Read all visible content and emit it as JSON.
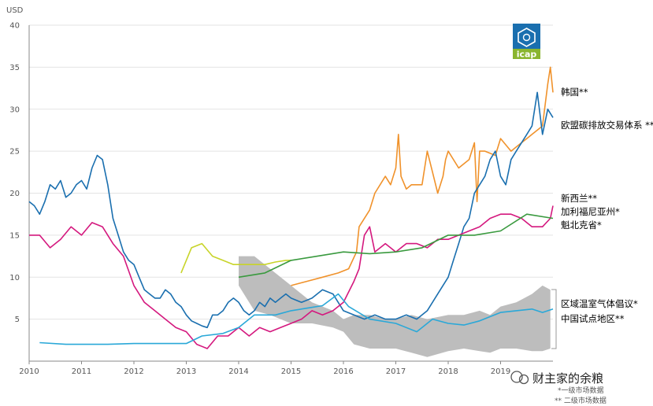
{
  "chart_data": {
    "type": "line",
    "ylabel": "USD",
    "xlim": [
      2010,
      2020
    ],
    "ylim": [
      0,
      40
    ],
    "yticks": [
      5,
      10,
      15,
      20,
      25,
      30,
      35,
      40
    ],
    "xticks": [
      2010,
      2011,
      2012,
      2013,
      2014,
      2015,
      2016,
      2017,
      2018,
      2019
    ],
    "grid": "horizontal",
    "legend_placement": "right",
    "series": [
      {
        "name": "韩国**",
        "color": "#f0922b",
        "x": [
          2015.0,
          2015.3,
          2015.6,
          2015.9,
          2016.1,
          2016.25,
          2016.3,
          2016.5,
          2016.6,
          2016.8,
          2016.9,
          2017.0,
          2017.05,
          2017.1,
          2017.2,
          2017.3,
          2017.5,
          2017.6,
          2017.7,
          2017.8,
          2017.9,
          2017.95,
          2018.0,
          2018.2,
          2018.4,
          2018.5,
          2018.55,
          2018.6,
          2018.7,
          2018.9,
          2019.0,
          2019.2,
          2019.4,
          2019.5,
          2019.6,
          2019.8,
          2019.9,
          2019.95,
          2020.0
        ],
        "y": [
          9,
          9.5,
          10,
          10.5,
          11,
          13,
          16,
          18,
          20,
          22,
          21,
          23,
          27,
          22,
          20.5,
          21,
          21,
          25,
          22.5,
          20,
          22,
          24,
          25,
          23,
          24,
          26,
          19,
          25,
          25,
          24.5,
          26.5,
          25,
          26,
          26.5,
          27,
          28,
          33,
          35,
          32
        ]
      },
      {
        "name": "欧盟碳排放交易体系 **",
        "color": "#1a6faf",
        "x": [
          2010.0,
          2010.1,
          2010.2,
          2010.3,
          2010.4,
          2010.5,
          2010.6,
          2010.7,
          2010.8,
          2010.9,
          2011.0,
          2011.1,
          2011.2,
          2011.3,
          2011.4,
          2011.5,
          2011.6,
          2011.7,
          2011.8,
          2011.9,
          2012.0,
          2012.1,
          2012.2,
          2012.3,
          2012.4,
          2012.5,
          2012.6,
          2012.7,
          2012.8,
          2012.9,
          2013.0,
          2013.1,
          2013.2,
          2013.3,
          2013.4,
          2013.5,
          2013.6,
          2013.7,
          2013.8,
          2013.9,
          2014.0,
          2014.1,
          2014.2,
          2014.3,
          2014.4,
          2014.5,
          2014.6,
          2014.7,
          2014.8,
          2014.9,
          2015.0,
          2015.2,
          2015.4,
          2015.6,
          2015.8,
          2016.0,
          2016.2,
          2016.4,
          2016.6,
          2016.8,
          2017.0,
          2017.2,
          2017.4,
          2017.6,
          2017.8,
          2018.0,
          2018.1,
          2018.2,
          2018.3,
          2018.4,
          2018.5,
          2018.6,
          2018.7,
          2018.8,
          2018.9,
          2019.0,
          2019.1,
          2019.2,
          2019.3,
          2019.4,
          2019.5,
          2019.6,
          2019.7,
          2019.8,
          2019.9,
          2020.0
        ],
        "y": [
          19,
          18.5,
          17.5,
          19,
          21,
          20.5,
          21.5,
          19.5,
          20,
          21,
          21.5,
          20.5,
          23,
          24.5,
          24,
          21,
          17,
          15,
          13,
          12,
          11.5,
          10,
          8.5,
          8,
          7.5,
          7.5,
          8.5,
          8,
          7,
          6.5,
          5.5,
          4.8,
          4.5,
          4.2,
          4,
          5.5,
          5.5,
          6,
          7,
          7.5,
          7,
          6,
          5.5,
          6,
          7,
          6.5,
          7.5,
          7,
          7.5,
          8,
          7.5,
          7,
          7.5,
          8.5,
          8,
          6,
          5.5,
          5,
          5.5,
          5,
          5,
          5.5,
          5,
          6,
          8,
          10,
          12,
          14,
          16,
          17,
          20,
          21,
          22,
          24,
          25,
          22,
          21,
          24,
          25,
          26,
          27,
          28,
          32,
          27,
          30,
          29
        ]
      },
      {
        "name": "新西兰**",
        "color": "#d4187e",
        "x": [
          2010.0,
          2010.2,
          2010.4,
          2010.6,
          2010.8,
          2011.0,
          2011.2,
          2011.4,
          2011.6,
          2011.8,
          2012.0,
          2012.2,
          2012.4,
          2012.6,
          2012.8,
          2013.0,
          2013.2,
          2013.4,
          2013.6,
          2013.8,
          2014.0,
          2014.2,
          2014.4,
          2014.6,
          2014.8,
          2015.0,
          2015.2,
          2015.4,
          2015.6,
          2015.8,
          2016.0,
          2016.2,
          2016.3,
          2016.4,
          2016.5,
          2016.6,
          2016.8,
          2017.0,
          2017.2,
          2017.4,
          2017.6,
          2017.8,
          2018.0,
          2018.2,
          2018.4,
          2018.6,
          2018.8,
          2019.0,
          2019.2,
          2019.4,
          2019.6,
          2019.8,
          2019.95,
          2020.0
        ],
        "y": [
          15,
          15,
          13.5,
          14.5,
          16,
          15,
          16.5,
          16,
          14,
          12.5,
          9,
          7,
          6,
          5,
          4,
          3.5,
          2,
          1.5,
          3,
          3,
          4,
          3,
          4,
          3.5,
          4,
          4.5,
          5,
          6,
          5.5,
          6,
          7,
          9.5,
          11,
          15,
          16,
          13,
          14,
          13,
          14,
          14,
          13.5,
          14.5,
          14.5,
          15,
          15.5,
          16,
          17,
          17.5,
          17.5,
          17,
          16,
          16,
          17,
          18.5
        ]
      },
      {
        "name": "加利福尼亚州*",
        "color": "#c8d42a",
        "x": [
          2012.9,
          2013.1,
          2013.3,
          2013.5,
          2013.7,
          2013.9,
          2014.1,
          2014.3,
          2014.5,
          2014.7,
          2014.9,
          2015.0
        ],
        "y": [
          10.5,
          13.5,
          14,
          12.5,
          12,
          11.5,
          11.5,
          11.5,
          11.5,
          11.8,
          12,
          12
        ]
      },
      {
        "name": "魁北克省*",
        "color": "#3a9a3f",
        "x": [
          2014.0,
          2014.5,
          2015.0,
          2015.5,
          2016.0,
          2016.5,
          2017.0,
          2017.5,
          2018.0,
          2018.5,
          2019.0,
          2019.5,
          2020.0
        ],
        "y": [
          10,
          10.5,
          12,
          12.5,
          13,
          12.8,
          13,
          13.5,
          15,
          15,
          15.5,
          17.5,
          17
        ]
      },
      {
        "name": "区域温室气体倡议*",
        "color": "#2aa8d8",
        "x": [
          2010.2,
          2010.7,
          2011.0,
          2011.5,
          2012.0,
          2012.5,
          2013.0,
          2013.3,
          2013.7,
          2014.0,
          2014.3,
          2014.7,
          2015.0,
          2015.3,
          2015.6,
          2015.9,
          2016.1,
          2016.5,
          2017.0,
          2017.4,
          2017.7,
          2018.0,
          2018.3,
          2018.6,
          2019.0,
          2019.3,
          2019.6,
          2019.8,
          2020.0
        ],
        "y": [
          2.2,
          2,
          2,
          2,
          2.1,
          2.1,
          2.1,
          3,
          3.3,
          4,
          5.5,
          5.5,
          6,
          6.3,
          6.6,
          8,
          6.5,
          5,
          4.5,
          3.5,
          5,
          4.5,
          4.3,
          4.8,
          5.8,
          6,
          6.2,
          5.8,
          6.2
        ]
      }
    ],
    "band": {
      "name": "中国试点地区**",
      "color": "#bdbdbd",
      "x": [
        2014.0,
        2014.3,
        2014.6,
        2015.0,
        2015.4,
        2015.8,
        2016.0,
        2016.2,
        2016.5,
        2016.8,
        2017.0,
        2017.3,
        2017.6,
        2018.0,
        2018.3,
        2018.6,
        2018.8,
        2019.0,
        2019.3,
        2019.6,
        2019.8,
        2019.95
      ],
      "lower": [
        9,
        6,
        5.5,
        4.5,
        4.5,
        4,
        3.5,
        2,
        1.5,
        1.5,
        1.5,
        1,
        0.5,
        1.2,
        1.5,
        1.2,
        1,
        1.5,
        1.5,
        1.2,
        1.2,
        1.5
      ],
      "upper": [
        12.5,
        12.5,
        11,
        9,
        7,
        6,
        5,
        5.5,
        5.5,
        5,
        5,
        5.5,
        5,
        5.5,
        5.5,
        6,
        5.5,
        6.5,
        7,
        8,
        9,
        8.5
      ]
    }
  },
  "legend": [
    {
      "label": "韩国**",
      "color": "#f0922b"
    },
    {
      "label": "欧盟碳排放交易体系 **",
      "color": "#1a6faf"
    },
    {
      "label": "新西兰**",
      "color": "#d4187e"
    },
    {
      "label": "加利福尼亚州*",
      "color": "#a3b81e"
    },
    {
      "label": "魁北克省*",
      "color": "#3a9a3f"
    },
    {
      "label": "区域温室气体倡议*",
      "color": "#2aa8d8"
    },
    {
      "label": "中国试点地区**",
      "color": "#8a8a8a"
    }
  ],
  "logo": {
    "text": "icap",
    "color": "#1a6faf"
  },
  "watermark": "财主家的余粮",
  "footnotes": {
    "primary": "*一级市场数据",
    "secondary": "** 二级市场数据"
  }
}
